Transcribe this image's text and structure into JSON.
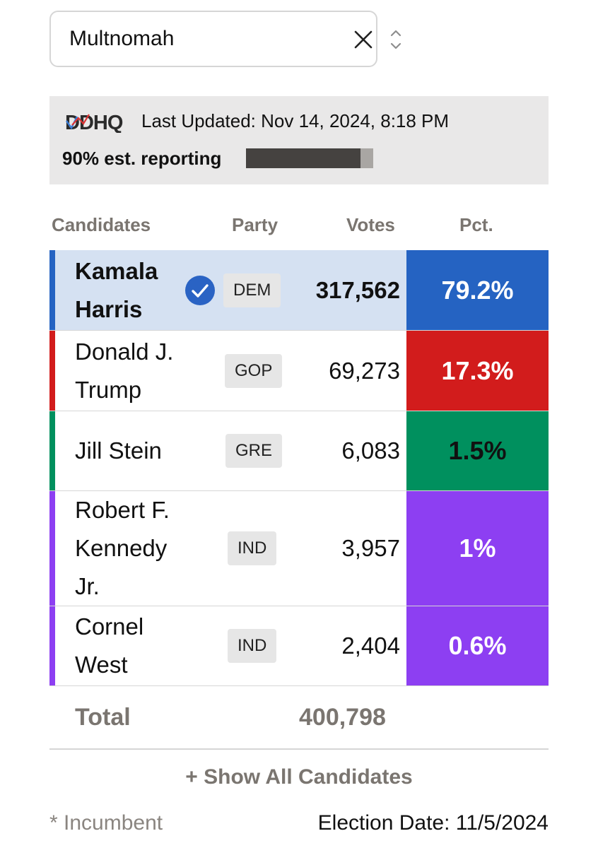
{
  "region_select": {
    "value": "Multnomah",
    "clear_icon": "close-icon",
    "toggle_icon": "chevron-up-down-icon"
  },
  "status": {
    "logo": "DDHQ",
    "last_updated": "Last Updated: Nov 14, 2024, 8:18 PM",
    "reporting_label": "90% est. reporting",
    "reporting_fraction": 0.9
  },
  "columns": {
    "candidates": "Candidates",
    "party": "Party",
    "votes": "Votes",
    "pct": "Pct."
  },
  "candidates": [
    {
      "name_lines": [
        "Kamala",
        "Harris"
      ],
      "party": "DEM",
      "votes": "317,562",
      "pct": "79.2%",
      "winner": true,
      "color": "#2563c2",
      "row_bg": "#d5e1f2",
      "pct_text_color": "#ffffff"
    },
    {
      "name_lines": [
        "Donald J.",
        "Trump"
      ],
      "party": "GOP",
      "votes": "69,273",
      "pct": "17.3%",
      "winner": false,
      "color": "#d21c1c",
      "row_bg": "#ffffff",
      "pct_text_color": "#ffffff"
    },
    {
      "name_lines": [
        "Jill Stein"
      ],
      "party": "GRE",
      "votes": "6,083",
      "pct": "1.5%",
      "winner": false,
      "color": "#00905e",
      "row_bg": "#ffffff",
      "pct_text_color": "#111111"
    },
    {
      "name_lines": [
        "Robert F.",
        "Kennedy",
        "Jr."
      ],
      "party": "IND",
      "votes": "3,957",
      "pct": "1%",
      "winner": false,
      "color": "#8d3ff2",
      "row_bg": "#ffffff",
      "pct_text_color": "#ffffff"
    },
    {
      "name_lines": [
        "Cornel",
        "West"
      ],
      "party": "IND",
      "votes": "2,404",
      "pct": "0.6%",
      "winner": false,
      "color": "#8d3ff2",
      "row_bg": "#ffffff",
      "pct_text_color": "#ffffff"
    }
  ],
  "total": {
    "label": "Total",
    "votes": "400,798"
  },
  "show_all_label": "+ Show All Candidates",
  "footer": {
    "incumbent_note": "* Incumbent",
    "election_date": "Election Date: 11/5/2024"
  }
}
